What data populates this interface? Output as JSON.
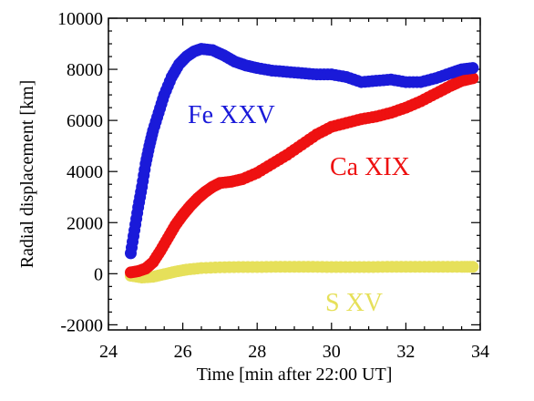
{
  "chart_data": {
    "type": "scatter",
    "xlabel": "Time [min after 22:00 UT]",
    "ylabel": "Radial displacement [km]",
    "xlim": [
      24,
      34
    ],
    "ylim": [
      -2200,
      10000
    ],
    "xticks": [
      24,
      26,
      28,
      30,
      32,
      34
    ],
    "yticks": [
      -2000,
      0,
      2000,
      4000,
      6000,
      8000,
      10000
    ],
    "x_tick_labels": [
      "24",
      "26",
      "28",
      "30",
      "32",
      "34"
    ],
    "y_tick_labels": [
      "-2000",
      "0",
      "2000",
      "4000",
      "6000",
      "8000",
      "10000"
    ],
    "grid": false,
    "series": [
      {
        "name": "Fe XXV",
        "color": "#1a1ad9",
        "points": [
          [
            24.6,
            800
          ],
          [
            24.7,
            1700
          ],
          [
            24.8,
            2600
          ],
          [
            24.9,
            3400
          ],
          [
            25.0,
            4300
          ],
          [
            25.1,
            5000
          ],
          [
            25.2,
            5600
          ],
          [
            25.35,
            6300
          ],
          [
            25.5,
            7000
          ],
          [
            25.7,
            7700
          ],
          [
            25.9,
            8200
          ],
          [
            26.1,
            8500
          ],
          [
            26.3,
            8700
          ],
          [
            26.5,
            8800
          ],
          [
            26.8,
            8750
          ],
          [
            27.1,
            8550
          ],
          [
            27.4,
            8300
          ],
          [
            27.7,
            8150
          ],
          [
            28.0,
            8050
          ],
          [
            28.4,
            7950
          ],
          [
            28.8,
            7900
          ],
          [
            29.2,
            7850
          ],
          [
            29.6,
            7800
          ],
          [
            30.0,
            7800
          ],
          [
            30.4,
            7700
          ],
          [
            30.8,
            7500
          ],
          [
            31.2,
            7550
          ],
          [
            31.6,
            7600
          ],
          [
            32.0,
            7500
          ],
          [
            32.4,
            7500
          ],
          [
            32.8,
            7650
          ],
          [
            33.2,
            7850
          ],
          [
            33.5,
            8000
          ],
          [
            33.8,
            8050
          ]
        ]
      },
      {
        "name": "Ca XIX",
        "color": "#ee1111",
        "points": [
          [
            24.6,
            50
          ],
          [
            24.8,
            100
          ],
          [
            25.0,
            200
          ],
          [
            25.2,
            450
          ],
          [
            25.4,
            900
          ],
          [
            25.6,
            1400
          ],
          [
            25.8,
            1900
          ],
          [
            26.0,
            2300
          ],
          [
            26.2,
            2650
          ],
          [
            26.4,
            2950
          ],
          [
            26.6,
            3200
          ],
          [
            26.8,
            3400
          ],
          [
            27.0,
            3550
          ],
          [
            27.3,
            3600
          ],
          [
            27.6,
            3700
          ],
          [
            28.0,
            3950
          ],
          [
            28.4,
            4300
          ],
          [
            28.8,
            4650
          ],
          [
            29.2,
            5050
          ],
          [
            29.6,
            5450
          ],
          [
            30.0,
            5750
          ],
          [
            30.4,
            5900
          ],
          [
            30.8,
            6050
          ],
          [
            31.2,
            6150
          ],
          [
            31.6,
            6300
          ],
          [
            32.0,
            6500
          ],
          [
            32.4,
            6750
          ],
          [
            32.8,
            7050
          ],
          [
            33.2,
            7350
          ],
          [
            33.5,
            7550
          ],
          [
            33.8,
            7650
          ]
        ]
      },
      {
        "name": "S XV",
        "color": "#e6e05a",
        "points": [
          [
            24.6,
            -80
          ],
          [
            24.9,
            -150
          ],
          [
            25.2,
            -120
          ],
          [
            25.5,
            -20
          ],
          [
            25.8,
            80
          ],
          [
            26.1,
            160
          ],
          [
            26.5,
            220
          ],
          [
            27.0,
            250
          ],
          [
            27.5,
            260
          ],
          [
            28.0,
            260
          ],
          [
            28.5,
            270
          ],
          [
            29.0,
            270
          ],
          [
            29.5,
            270
          ],
          [
            30.0,
            260
          ],
          [
            30.5,
            260
          ],
          [
            31.0,
            260
          ],
          [
            31.5,
            270
          ],
          [
            32.0,
            270
          ],
          [
            32.5,
            270
          ],
          [
            33.0,
            270
          ],
          [
            33.5,
            270
          ],
          [
            33.8,
            270
          ]
        ]
      }
    ]
  }
}
